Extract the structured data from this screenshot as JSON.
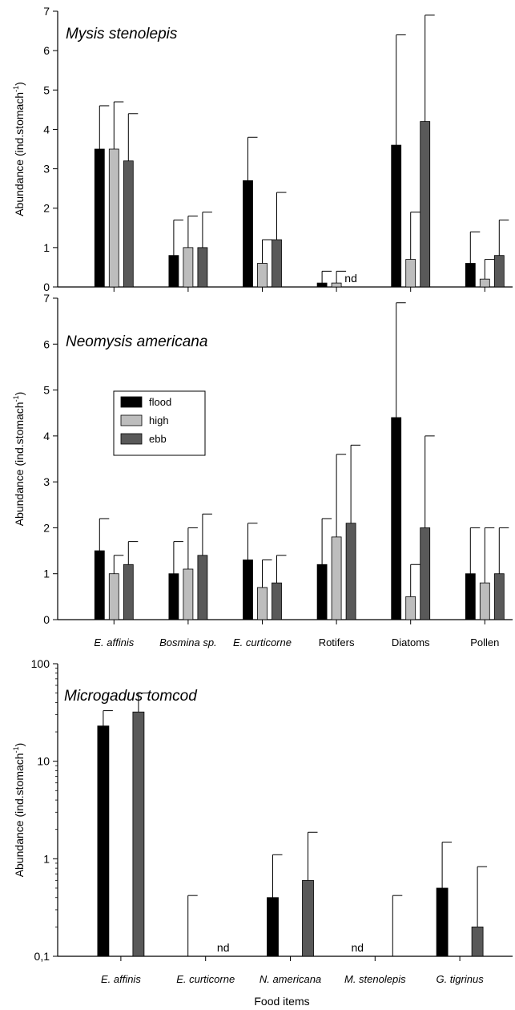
{
  "chart_data": [
    {
      "type": "bar",
      "title": "Mysis stenolepis",
      "ylabel": "Abundance (ind.stomach-1)",
      "ylim": [
        0,
        7
      ],
      "yticks": [
        "0",
        "1",
        "2",
        "3",
        "4",
        "5",
        "6",
        "7"
      ],
      "categories": [
        "E. affinis",
        "Bosmina sp.",
        "E. curticorne",
        "Rotifers",
        "Diatoms",
        "Pollen"
      ],
      "series": [
        {
          "name": "flood",
          "color": "#000000",
          "values": [
            3.5,
            0.8,
            2.7,
            0.1,
            3.6,
            0.6
          ],
          "errors": [
            1.1,
            0.9,
            1.1,
            0.3,
            2.8,
            0.8
          ]
        },
        {
          "name": "high",
          "color": "#bdbdbd",
          "values": [
            3.5,
            1.0,
            0.6,
            0.1,
            0.7,
            0.2
          ],
          "errors": [
            1.2,
            0.8,
            0.6,
            0.3,
            1.2,
            0.5
          ]
        },
        {
          "name": "ebb",
          "color": "#595959",
          "values": [
            3.2,
            1.0,
            1.2,
            null,
            4.2,
            0.8
          ],
          "errors": [
            1.2,
            0.9,
            1.2,
            null,
            2.7,
            0.9
          ]
        }
      ],
      "annotations": [
        {
          "text": "nd",
          "category": "Rotifers",
          "series": "ebb"
        }
      ]
    },
    {
      "type": "bar",
      "title": "Neomysis americana",
      "ylabel": "Abundance (ind.stomach-1)",
      "ylim": [
        0,
        7
      ],
      "yticks": [
        "0",
        "1",
        "2",
        "3",
        "4",
        "5",
        "6",
        "7"
      ],
      "categories": [
        "E. affinis",
        "Bosmina sp.",
        "E. curticorne",
        "Rotifers",
        "Diatoms",
        "Pollen"
      ],
      "legend": {
        "position": "upper-left",
        "entries": [
          "flood",
          "high",
          "ebb"
        ]
      },
      "series": [
        {
          "name": "flood",
          "color": "#000000",
          "values": [
            1.5,
            1.0,
            1.3,
            1.2,
            4.4,
            1.0
          ],
          "errors": [
            0.7,
            0.7,
            0.8,
            1.0,
            2.5,
            1.0
          ]
        },
        {
          "name": "high",
          "color": "#bdbdbd",
          "values": [
            1.0,
            1.1,
            0.7,
            1.8,
            0.5,
            0.8
          ],
          "errors": [
            0.4,
            0.9,
            0.6,
            1.8,
            0.7,
            1.2
          ]
        },
        {
          "name": "ebb",
          "color": "#595959",
          "values": [
            1.2,
            1.4,
            0.8,
            2.1,
            2.0,
            1.0
          ],
          "errors": [
            0.5,
            0.9,
            0.6,
            1.7,
            2.0,
            1.0
          ]
        }
      ]
    },
    {
      "type": "bar",
      "title": "Microgadus tomcod",
      "ylabel": "Abundance (ind.stomach-1)",
      "xlabel": "Food items",
      "yscale": "log",
      "ylim": [
        0.1,
        100
      ],
      "yticks": [
        "0,1",
        "1",
        "10",
        "100"
      ],
      "categories": [
        "E. affinis",
        "E. curticorne",
        "N. americana",
        "M. stenolepis",
        "G. tigrinus"
      ],
      "series": [
        {
          "name": "flood",
          "color": "#000000",
          "values": [
            23,
            null,
            0.4,
            null,
            0.5
          ],
          "upper": [
            33,
            null,
            1.1,
            null,
            1.48
          ]
        },
        {
          "name": "ebb",
          "color": "#595959",
          "values": [
            32,
            null,
            0.6,
            null,
            0.2
          ],
          "upper": [
            50,
            null,
            1.87,
            null,
            0.83
          ]
        }
      ],
      "error_only": [
        {
          "category": "E. curticorne",
          "series": "flood",
          "upper": 0.42
        },
        {
          "category": "M. stenolepis",
          "series": "ebb",
          "upper": 0.42
        }
      ],
      "annotations": [
        {
          "text": "nd",
          "category": "E. curticorne",
          "series": "ebb"
        },
        {
          "text": "nd",
          "category": "M. stenolepis",
          "series": "flood"
        }
      ]
    }
  ]
}
